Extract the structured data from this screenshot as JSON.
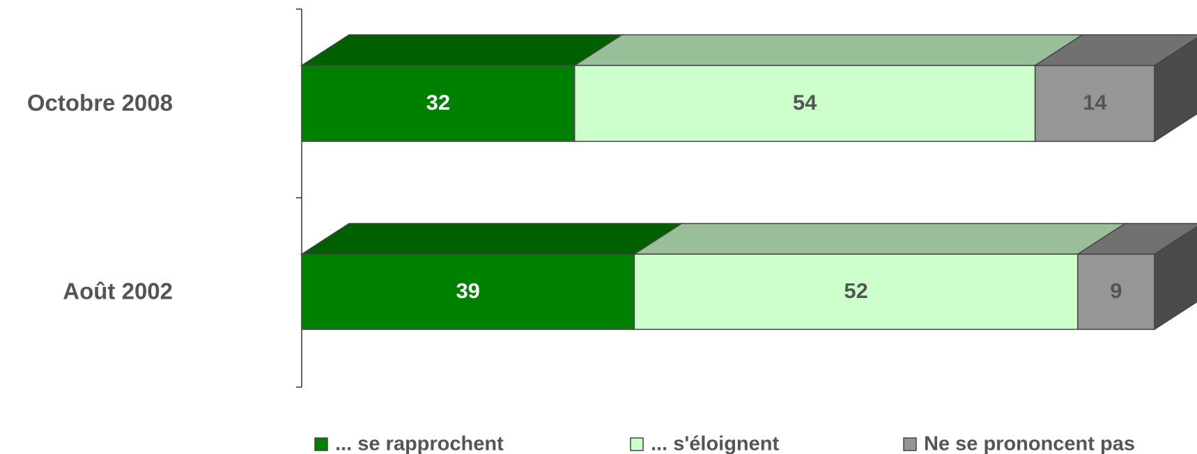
{
  "chart_data": {
    "type": "bar",
    "orientation": "horizontal",
    "stacked": true,
    "categories": [
      "Octobre 2008",
      "Août 2002"
    ],
    "series": [
      {
        "name": "... se rapprochent",
        "color": "#008000",
        "label_color": "#ffffff",
        "values": [
          32,
          39
        ]
      },
      {
        "name": "... s'éloignent",
        "color": "#ccffcc",
        "label_color": "#555555",
        "values": [
          54,
          52
        ]
      },
      {
        "name": "Ne se prononcent pas",
        "color": "#969696",
        "label_color": "#555555",
        "values": [
          14,
          9
        ]
      }
    ],
    "legend": "bottom"
  }
}
